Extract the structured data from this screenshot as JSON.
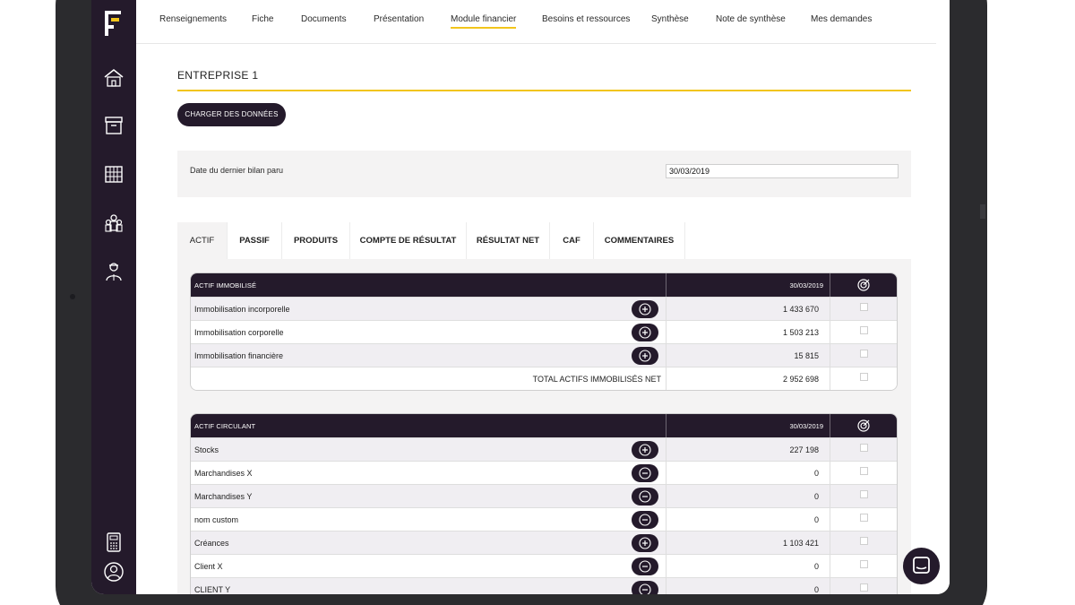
{
  "colors": {
    "sidebar": "#241a2b",
    "accent": "#f2c51b",
    "panel": "#f4f3f3"
  },
  "app": {
    "logo": "F"
  },
  "sidebar_icons": [
    "home-icon",
    "archive-box-icon",
    "building-icon",
    "group-icon",
    "person-icon",
    "calculator-icon",
    "user-circle-icon"
  ],
  "nav": {
    "items": [
      "Renseignements",
      "Fiche",
      "Documents",
      "Présentation",
      "Module financier",
      "Besoins et ressources",
      "Synthèse",
      "Note de synthèse",
      "Mes demandes"
    ],
    "active": "Module financier"
  },
  "page": {
    "title": "ENTREPRISE 1",
    "load_button": "CHARGER DES DONNÉES"
  },
  "date_section": {
    "label": "Date du dernier bilan paru",
    "value": "30/03/2019"
  },
  "tabs": {
    "items": [
      "ACTIF",
      "PASSIF",
      "PRODUITS",
      "COMPTE DE RÉSULTAT",
      "RÉSULTAT NET",
      "CAF",
      "COMMENTAIRES"
    ],
    "active": "ACTIF"
  },
  "tables": [
    {
      "title": "ACTIF IMMOBILISÉ",
      "date": "30/03/2019",
      "header_icon": "target-icon",
      "rows": [
        {
          "label": "Immobilisation incorporelle",
          "button": "plus",
          "value": "1 433 670"
        },
        {
          "label": "Immobilisation corporelle",
          "button": "plus",
          "value": "1 503 213"
        },
        {
          "label": "Immobilisation financière",
          "button": "plus",
          "value": "15 815"
        }
      ],
      "total": {
        "label": "TOTAL ACTIFS IMMOBILISÉS NET",
        "value": "2 952 698"
      }
    },
    {
      "title": "ACTIF CIRCULANT",
      "date": "30/03/2019",
      "header_icon": "target-icon",
      "rows": [
        {
          "label": "Stocks",
          "button": "plus",
          "value": "227 198"
        },
        {
          "label": "Marchandises X",
          "button": "minus",
          "value": "0"
        },
        {
          "label": "Marchandises Y",
          "button": "minus",
          "value": "0"
        },
        {
          "label": "nom custom",
          "button": "minus",
          "value": "0"
        },
        {
          "label": "Créances",
          "button": "plus",
          "value": "1 103 421"
        },
        {
          "label": "Client X",
          "button": "minus",
          "value": "0"
        },
        {
          "label": "CLIENT Y",
          "button": "minus",
          "value": "0"
        }
      ]
    }
  ],
  "chat_button": {
    "icon": "chat-icon"
  }
}
